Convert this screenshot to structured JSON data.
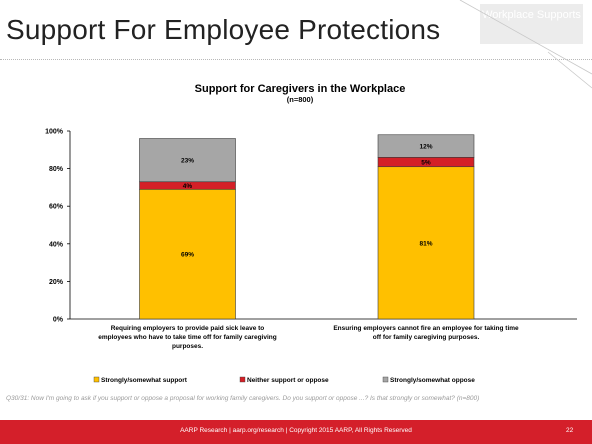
{
  "slide": {
    "title": "Support For Employee Protections",
    "section_tag": "Workplace Supports",
    "footnote": "Q30/31: Now I'm going to ask if you support or oppose a proposal for working family caregivers. Do you support or oppose ...? Is that strongly or somewhat? (n=800)",
    "footer_text": "AARP Research | aarp.org/research | Copyright 2015 AARP, All Rights Reserved",
    "page_number": "22"
  },
  "colors": {
    "support": "#ffc000",
    "neither": "#d42027",
    "oppose": "#a6a6a6",
    "footer": "#d41f2a"
  },
  "chart_data": {
    "type": "bar",
    "stacked": true,
    "title": "Support for Caregivers in the Workplace",
    "subtitle": "(n=800)",
    "categories": [
      "Requiring employers to provide paid sick leave to employees who have to take time off for family caregiving purposes.",
      "Ensuring employers cannot fire an employee for taking time off for family caregiving purposes."
    ],
    "series": [
      {
        "name": "Strongly/somewhat support",
        "values": [
          69,
          81
        ],
        "labels": [
          "69%",
          "81%"
        ]
      },
      {
        "name": "Neither support or oppose",
        "values": [
          4,
          5
        ],
        "labels": [
          "4%",
          "5%"
        ]
      },
      {
        "name": "Strongly/somewhat oppose",
        "values": [
          23,
          12
        ],
        "labels": [
          "23%",
          "12%"
        ]
      }
    ],
    "ylim": [
      0,
      100
    ],
    "y_ticks": [
      "0%",
      "20%",
      "40%",
      "60%",
      "80%",
      "100%"
    ],
    "grid": false,
    "legend_position": "bottom"
  }
}
